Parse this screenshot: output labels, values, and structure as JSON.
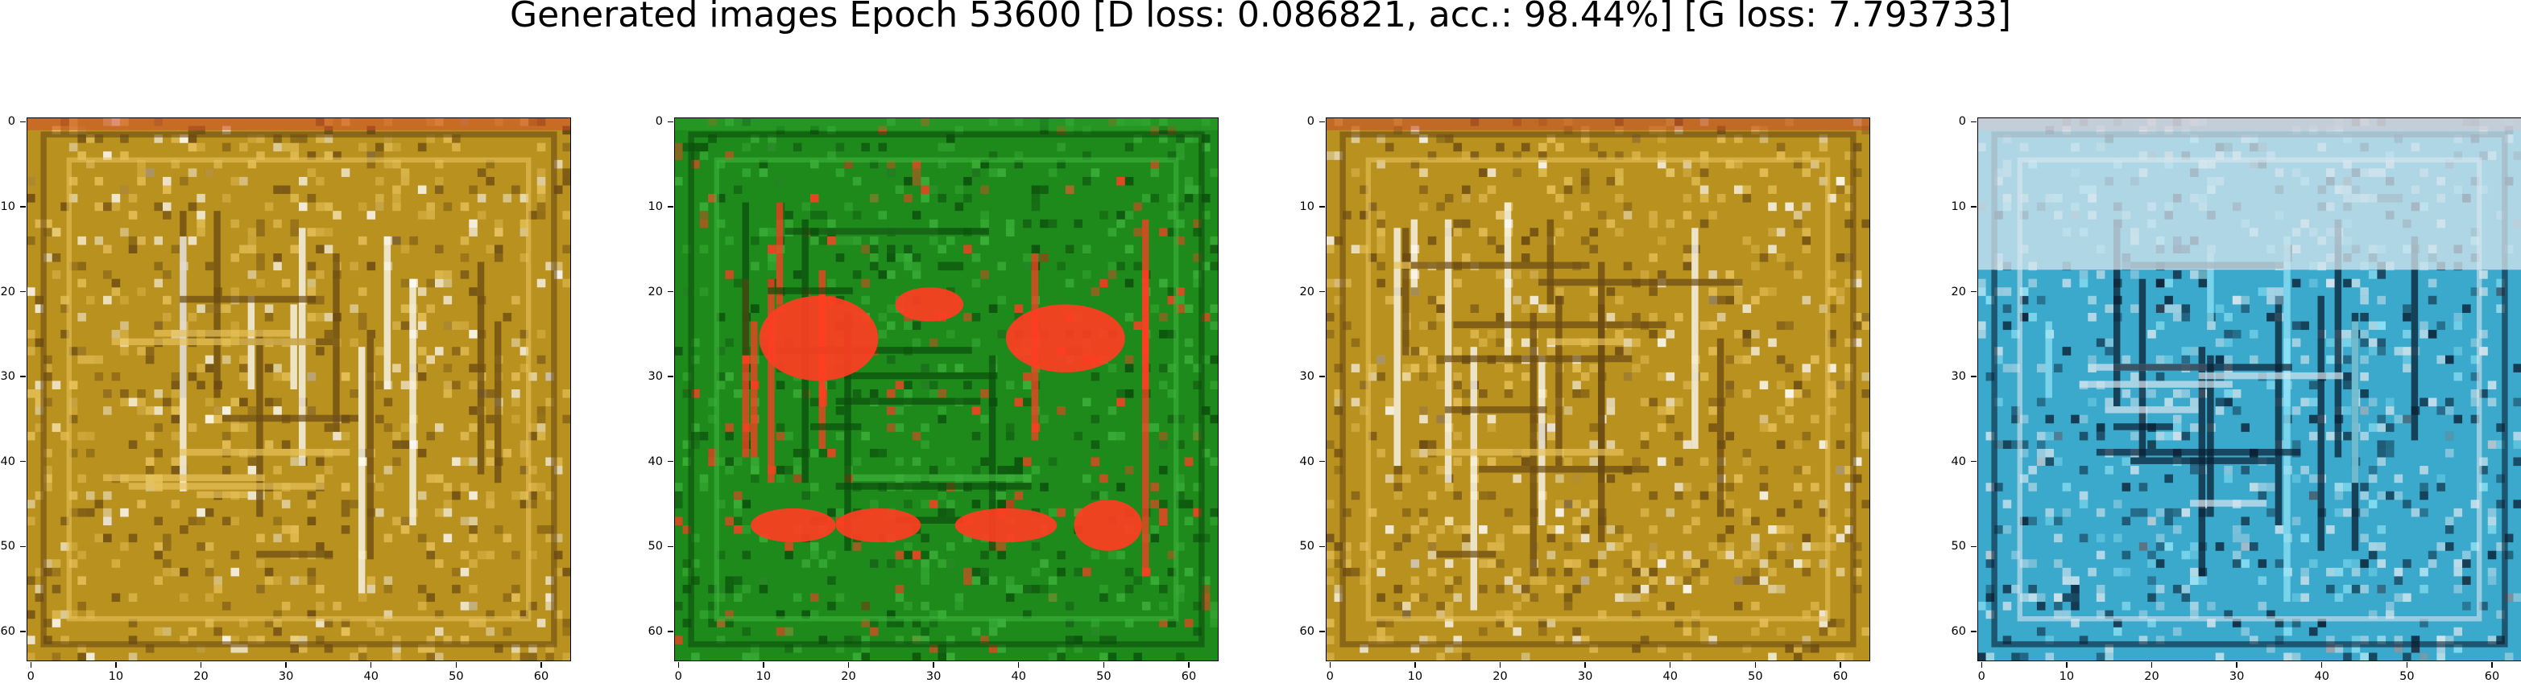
{
  "title": "Generated images Epoch 53600 [D loss: 0.086821, acc.: 98.44%] [G loss: 7.793733]",
  "axis_ticks": [
    "0",
    "10",
    "20",
    "30",
    "40",
    "50",
    "60"
  ],
  "panels": [
    {
      "name": "gold",
      "colors": {
        "base": "#b8911f",
        "light": "#e7c25a",
        "dark": "#6b4a12",
        "accent": "#ffffff",
        "edge": "#d34c2a"
      }
    },
    {
      "name": "green",
      "colors": {
        "base": "#1f8a1c",
        "light": "#3cb23a",
        "dark": "#0b4d0c",
        "accent": "#ff3d22",
        "edge": "#2aa02a"
      }
    },
    {
      "name": "gold2",
      "colors": {
        "base": "#b8911f",
        "light": "#e7c25a",
        "dark": "#6b4a12",
        "accent": "#ffffff",
        "edge": "#c84a2a"
      }
    },
    {
      "name": "blue",
      "colors": {
        "base": "#3aa9cc",
        "light": "#d7e6ee",
        "dark": "#0a1f33",
        "accent": "#8fe3f5",
        "edge": "#c96a6a"
      }
    }
  ]
}
